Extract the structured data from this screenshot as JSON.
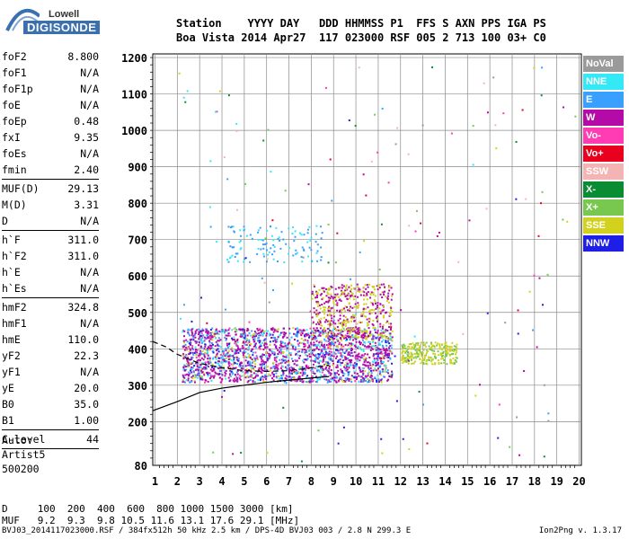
{
  "logo": {
    "line1": "Lowell",
    "line2": "DIGISONDE"
  },
  "header": {
    "line1": "Station    YYYY DAY   DDD HHMMSS P1  FFS S AXN PPS IGA PS",
    "line2": "Boa Vista 2014 Apr27  117 023000 RSF 005 2 713 100 03+ C0"
  },
  "params": {
    "group1": [
      {
        "k": "foF2",
        "v": "8.800"
      },
      {
        "k": "foF1",
        "v": "N/A"
      },
      {
        "k": "foF1p",
        "v": "N/A"
      },
      {
        "k": "foE",
        "v": "N/A"
      },
      {
        "k": "foEp",
        "v": "0.48"
      },
      {
        "k": "fxI",
        "v": "9.35"
      },
      {
        "k": "foEs",
        "v": "N/A"
      },
      {
        "k": "fmin",
        "v": "2.40"
      }
    ],
    "group2": [
      {
        "k": "MUF(D)",
        "v": "29.13"
      },
      {
        "k": "M(D)",
        "v": "3.31"
      },
      {
        "k": "D",
        "v": "N/A"
      }
    ],
    "group3": [
      {
        "k": "h`F",
        "v": "311.0"
      },
      {
        "k": "h`F2",
        "v": "311.0"
      },
      {
        "k": "h`E",
        "v": "N/A"
      },
      {
        "k": "h`Es",
        "v": "N/A"
      }
    ],
    "group4": [
      {
        "k": "hmF2",
        "v": "324.8"
      },
      {
        "k": "hmF1",
        "v": "N/A"
      },
      {
        "k": "hmE",
        "v": "110.0"
      },
      {
        "k": "yF2",
        "v": "22.3"
      },
      {
        "k": "yF1",
        "v": "N/A"
      },
      {
        "k": "yE",
        "v": "20.0"
      },
      {
        "k": "B0",
        "v": "35.0"
      },
      {
        "k": "B1",
        "v": "1.00"
      }
    ],
    "group5": [
      {
        "k": "C-level",
        "v": "44"
      }
    ]
  },
  "auto": {
    "line1": "Auto:",
    "line2": "Artist5",
    "line3": "500200"
  },
  "legend": [
    {
      "label": "NoVal",
      "color": "#9a9a9a"
    },
    {
      "label": "NNE",
      "color": "#35e8f5"
    },
    {
      "label": "E",
      "color": "#3aa0ff"
    },
    {
      "label": "W",
      "color": "#b40aa8"
    },
    {
      "label": "Vo-",
      "color": "#ff3cb4"
    },
    {
      "label": "Vo+",
      "color": "#e8001e"
    },
    {
      "label": "SSW",
      "color": "#f5b4b4"
    },
    {
      "label": "X-",
      "color": "#0a8c32"
    },
    {
      "label": "X+",
      "color": "#78c850"
    },
    {
      "label": "SSE",
      "color": "#d2d21e"
    },
    {
      "label": "NNW",
      "color": "#1e1ee6"
    }
  ],
  "muf_table": {
    "d_line": "D     100  200  400  600  800 1000 1500 3000 [km]",
    "muf_line": "MUF   9.2  9.3  9.8 10.5 11.6 13.1 17.6 29.1 [MHz]"
  },
  "footer": {
    "left": "BVJ03_2014117023000.RSF / 384fx512h 50 kHz 2.5 km / DPS-4D BVJ03 003 / 2.8 N 299.3 E",
    "right": "Ion2Png v. 1.3.17"
  },
  "chart_data": {
    "type": "scatter",
    "x_ticks": [
      "1",
      "2",
      "3",
      "4",
      "5",
      "6",
      "7",
      "8",
      "9",
      "10",
      "11",
      "12",
      "13",
      "14",
      "15",
      "16",
      "17",
      "18",
      "19",
      "20"
    ],
    "y_ticks": [
      "80",
      "200",
      "300",
      "400",
      "500",
      "600",
      "700",
      "800",
      "900",
      "1000",
      "1100",
      "1200"
    ],
    "xlim": [
      0.9,
      20.1
    ],
    "ylim": [
      80,
      1210
    ],
    "xunit": "MHz",
    "yunit": "km",
    "grid": true,
    "legend_placement": "right",
    "traces": {
      "f2_main": {
        "xrange": [
          2.2,
          11.6
        ],
        "hrange": [
          310,
          460
        ]
      },
      "f2_spread_high": {
        "xrange": [
          8.0,
          11.6
        ],
        "hrange": [
          430,
          580
        ]
      },
      "f2_oblique": {
        "xrange": [
          4.2,
          8.5
        ],
        "hrange": [
          640,
          740
        ]
      },
      "x_trace": {
        "xrange": [
          12.0,
          14.5
        ],
        "hrange": [
          360,
          420
        ]
      }
    },
    "profile_curve": [
      [
        0.9,
        230
      ],
      [
        2,
        255
      ],
      [
        3,
        280
      ],
      [
        4,
        292
      ],
      [
        5,
        300
      ],
      [
        6,
        308
      ],
      [
        7,
        314
      ],
      [
        8,
        320
      ],
      [
        8.8,
        324
      ]
    ],
    "virtual_curve_dashed": [
      [
        0.9,
        420
      ],
      [
        1.5,
        405
      ],
      [
        2,
        385
      ],
      [
        2.5,
        372
      ],
      [
        3,
        360
      ],
      [
        4,
        348
      ],
      [
        5,
        340
      ],
      [
        6,
        338
      ],
      [
        7,
        340
      ],
      [
        8,
        348
      ],
      [
        8.8,
        355
      ]
    ]
  }
}
